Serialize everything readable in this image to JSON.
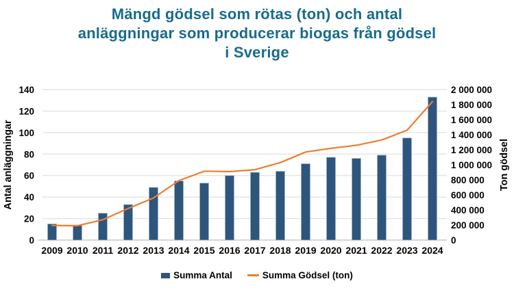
{
  "title": {
    "lines": [
      "Mängd gödsel som rötas (ton) och antal",
      "anläggningar som producerar biogas från gödsel",
      "i Sverige"
    ]
  },
  "colors": {
    "title": "#186B8D",
    "bar": "#2E567C",
    "bar_edge": "#9FB3C8",
    "line": "#ED7D31",
    "grid": "#D9D9D9",
    "axis_line": "#BFBFBF",
    "text": "#000000"
  },
  "chart_data": {
    "type": "bar+line combo",
    "categories": [
      "2009",
      "2010",
      "2011",
      "2012",
      "2013",
      "2014",
      "2015",
      "2016",
      "2017",
      "2018",
      "2019",
      "2020",
      "2021",
      "2022",
      "2023",
      "2024"
    ],
    "series": [
      {
        "name": "Summa Antal",
        "type": "bar",
        "axis": "left",
        "color": "#2E567C",
        "values": [
          15,
          14,
          25,
          33,
          49,
          55,
          53,
          60,
          63,
          64,
          71,
          77,
          76,
          79,
          95,
          133
        ]
      },
      {
        "name": "Summa Gödsel (ton)",
        "type": "line",
        "axis": "right",
        "color": "#ED7D31",
        "values": [
          195000,
          190000,
          270000,
          420000,
          560000,
          790000,
          915000,
          910000,
          935000,
          1030000,
          1170000,
          1220000,
          1260000,
          1330000,
          1460000,
          1840000
        ]
      }
    ],
    "left_axis": {
      "label": "Antal anläggningar",
      "min": 0,
      "max": 140,
      "tick_step": 20,
      "tick_labels": [
        "0",
        "20",
        "40",
        "60",
        "80",
        "100",
        "120",
        "140"
      ]
    },
    "right_axis": {
      "label": "Ton gödsel",
      "min": 0,
      "max": 2000000,
      "tick_step": 200000,
      "tick_labels": [
        "0",
        "200 000",
        "400 000",
        "600 000",
        "800 000",
        "1 000 000",
        "1 200 000",
        "1 400 000",
        "1 600 000",
        "1 800 000",
        "2 000 000"
      ]
    },
    "grid": {
      "horizontal": true,
      "vertical": false
    },
    "legend": {
      "position": "bottom",
      "items": [
        {
          "label": "Summa Antal",
          "swatch": "square",
          "color": "#2E567C"
        },
        {
          "label": "Summa Gödsel (ton)",
          "swatch": "line",
          "color": "#ED7D31"
        }
      ]
    }
  }
}
